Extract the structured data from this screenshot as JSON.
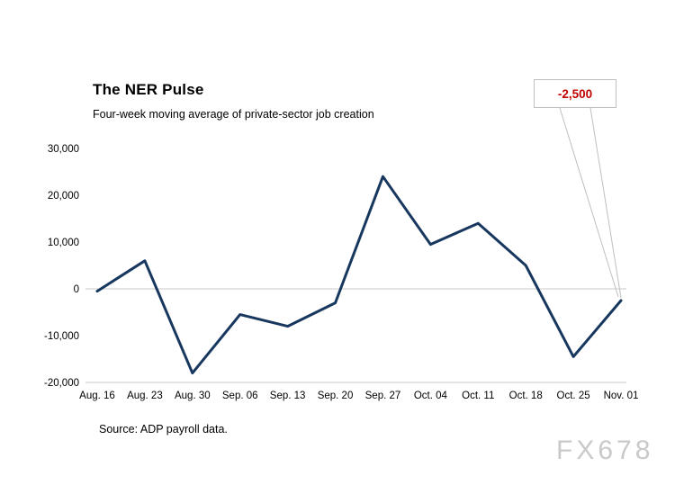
{
  "chart_data": {
    "type": "line",
    "title": "The NER Pulse",
    "subtitle": "Four-week moving average of private-sector job creation",
    "categories": [
      "Aug. 16",
      "Aug. 23",
      "Aug. 30",
      "Sep. 06",
      "Sep. 13",
      "Sep. 20",
      "Sep. 27",
      "Oct. 04",
      "Oct. 11",
      "Oct. 18",
      "Oct. 25",
      "Nov. 01"
    ],
    "values": [
      -500,
      6000,
      -18000,
      -5500,
      -8000,
      -3000,
      24000,
      9500,
      14000,
      5000,
      -14500,
      -2500
    ],
    "ylim": [
      -20000,
      30000
    ],
    "yticks": [
      {
        "value": 30000,
        "label": "30,000"
      },
      {
        "value": 20000,
        "label": "20,000"
      },
      {
        "value": 10000,
        "label": "10,000"
      },
      {
        "value": 0,
        "label": "0"
      },
      {
        "value": -10000,
        "label": "-10,000"
      },
      {
        "value": -20000,
        "label": "-20,000"
      }
    ],
    "line_color": "#17375E",
    "grid": "zero-line-and-bottom-axis-only",
    "legend": "none",
    "annotation": {
      "text": "-2,500",
      "color": "#C00000",
      "target_category": "Nov. 01"
    },
    "source": "Source: ADP payroll data.",
    "watermark": "FX678"
  }
}
